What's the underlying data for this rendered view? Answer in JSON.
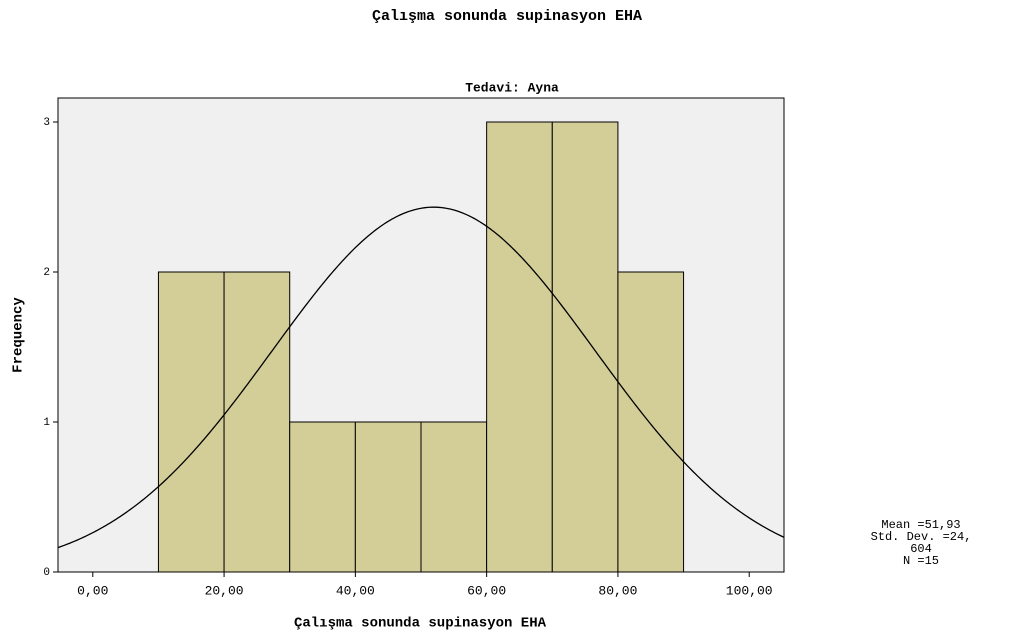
{
  "chart_data": {
    "type": "histogram",
    "title": "Çalışma sonunda supinasyon EHA",
    "subtitle": "Tedavi: Ayna",
    "x_label": "Çalışma sonunda supinasyon EHA",
    "y_label": "Frequency",
    "bins": [
      10,
      20,
      30,
      40,
      50,
      60,
      70,
      80,
      90
    ],
    "values": [
      2,
      2,
      1,
      1,
      1,
      3,
      3,
      2
    ],
    "color": "#d3ce97",
    "xlim": [
      -5.3,
      105.3
    ],
    "ylim": [
      0,
      3.16
    ],
    "xticks": [
      {
        "value": 0,
        "label": "0,00"
      },
      {
        "value": 20,
        "label": "20,00"
      },
      {
        "value": 40,
        "label": "40,00"
      },
      {
        "value": 60,
        "label": "60,00"
      },
      {
        "value": 80,
        "label": "80,00"
      },
      {
        "value": 100,
        "label": "100,00"
      }
    ],
    "yticks": [
      0,
      1,
      2,
      3
    ],
    "normal_curve": true,
    "stats": {
      "mean": 51.93,
      "std": 24.604,
      "n": 15,
      "value_labels": [
        "Mean =51,93",
        "Std. Dev. =24,",
        "604",
        "N =15"
      ]
    }
  }
}
